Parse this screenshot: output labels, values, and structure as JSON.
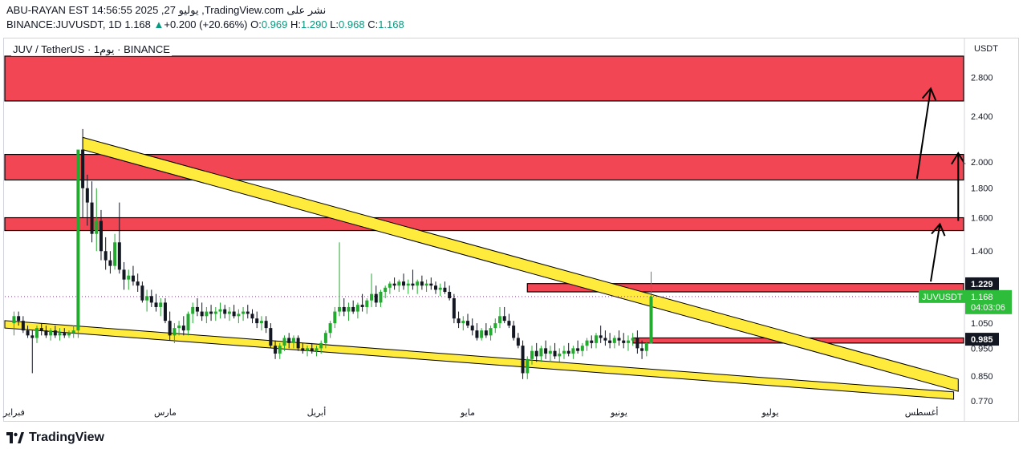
{
  "header": {
    "line1": "ABU-RAYAN EST 14:56:55 2025 ,27 يوليو ,TradingView.com نشر على",
    "symbol_text": "BINANCE:JUVUSDT, 1D 1.168",
    "change": "+0.200 (+20.66%)",
    "o_label": "O:",
    "o_value": "0.969",
    "h_label": "H:",
    "h_value": "1.290",
    "l_label": "L:",
    "l_value": "0.968",
    "c_label": "C:",
    "c_value": "1.168"
  },
  "chart_title": "JUV / TetherUS · 1يوم · BINANCE",
  "axis_unit": "USDT",
  "footer": {
    "brand": "TradingView",
    "icon": "tradingview-logo-icon"
  },
  "colors": {
    "zone_red": "#f23645",
    "trend_yellow": "#ffeb3b",
    "up": "#22ab2e",
    "down": "#131722",
    "price_label_bg": "#2ebd3a"
  },
  "chart_data": {
    "type": "candlestick",
    "symbol": "JUVUSDT",
    "interval": "1D",
    "y_scale": "log",
    "ylim": [
      0.77,
      3.05
    ],
    "y_ticks": [
      0.77,
      0.85,
      0.95,
      1.05,
      1.4,
      1.6,
      1.8,
      2.0,
      2.4,
      2.8
    ],
    "y_tick_labels": [
      "0.770",
      "0.850",
      "0.950",
      "1.050",
      "1.400",
      "1.600",
      "1.800",
      "2.000",
      "2.400",
      "2.800"
    ],
    "x_day_range": [
      -2,
      207
    ],
    "x_ticks": [
      {
        "day": 0,
        "label": "فبراير"
      },
      {
        "day": 33,
        "label": "مارس"
      },
      {
        "day": 66,
        "label": "أبريل"
      },
      {
        "day": 99,
        "label": "مايو"
      },
      {
        "day": 132,
        "label": "يونيو"
      },
      {
        "day": 165,
        "label": "يوليو"
      },
      {
        "day": 198,
        "label": "أغسطس"
      }
    ],
    "current_price": {
      "value": 1.168,
      "label": "JUVUSDT",
      "value_label": "1.168",
      "countdown": "04:03:06"
    },
    "price_labels": [
      {
        "value": 1.229,
        "label": "1.229"
      },
      {
        "value": 0.985,
        "label": "0.985"
      }
    ],
    "zones": [
      {
        "low": 2.55,
        "high": 3.05,
        "from_day": -2,
        "to_day": 216
      },
      {
        "low": 1.86,
        "high": 2.06,
        "from_day": -2,
        "to_day": 216
      },
      {
        "low": 1.52,
        "high": 1.6,
        "from_day": -2,
        "to_day": 216
      },
      {
        "low": 1.19,
        "high": 1.23,
        "from_day": 112,
        "to_day": 216
      },
      {
        "low": 0.97,
        "high": 0.99,
        "from_day": 135,
        "to_day": 216
      }
    ],
    "trend_channels": [
      {
        "from_day": 15,
        "from_price": 2.1,
        "to_day": 206,
        "to_price": 0.8,
        "offset": 0.05
      },
      {
        "from_day": -2,
        "from_price": 1.03,
        "to_day": 205,
        "to_price": 0.775,
        "offset": 0.03
      }
    ],
    "arrows": [
      {
        "from_day": 200,
        "from_price": 1.24,
        "to_day": 202,
        "to_price": 1.56
      },
      {
        "from_day": 206,
        "from_price": 1.58,
        "to_day": 206,
        "to_price": 2.07
      },
      {
        "from_day": 197,
        "from_price": 1.87,
        "to_day": 200,
        "to_price": 2.68
      }
    ],
    "candles_ohlc": [
      [
        1.05,
        1.1,
        1.0,
        1.08
      ],
      [
        1.08,
        1.1,
        1.04,
        1.06
      ],
      [
        1.06,
        1.08,
        1.01,
        1.02
      ],
      [
        1.02,
        1.04,
        0.99,
        1.0
      ],
      [
        1.0,
        1.02,
        0.86,
        0.99
      ],
      [
        0.99,
        1.04,
        0.97,
        1.03
      ],
      [
        1.03,
        1.05,
        1.0,
        1.02
      ],
      [
        1.02,
        1.04,
        0.99,
        1.0
      ],
      [
        1.0,
        1.03,
        0.98,
        1.02
      ],
      [
        1.02,
        1.04,
        0.99,
        1.0
      ],
      [
        1.0,
        1.03,
        0.98,
        1.01
      ],
      [
        1.01,
        1.03,
        0.99,
        1.0
      ],
      [
        1.0,
        1.02,
        0.99,
        1.01
      ],
      [
        1.01,
        1.04,
        0.99,
        1.02
      ],
      [
        1.02,
        1.06,
        0.99,
        2.1
      ],
      [
        2.1,
        2.28,
        1.6,
        1.8
      ],
      [
        1.8,
        1.9,
        1.55,
        1.7
      ],
      [
        1.7,
        1.85,
        1.45,
        1.5
      ],
      [
        1.5,
        1.8,
        1.4,
        1.58
      ],
      [
        1.58,
        1.65,
        1.35,
        1.4
      ],
      [
        1.4,
        1.48,
        1.3,
        1.35
      ],
      [
        1.35,
        1.4,
        1.28,
        1.32
      ],
      [
        1.32,
        1.5,
        1.3,
        1.45
      ],
      [
        1.45,
        1.7,
        1.28,
        1.3
      ],
      [
        1.3,
        1.34,
        1.2,
        1.25
      ],
      [
        1.25,
        1.3,
        1.2,
        1.27
      ],
      [
        1.27,
        1.32,
        1.22,
        1.24
      ],
      [
        1.24,
        1.28,
        1.19,
        1.22
      ],
      [
        1.22,
        1.24,
        1.14,
        1.15
      ],
      [
        1.15,
        1.2,
        1.1,
        1.17
      ],
      [
        1.17,
        1.2,
        1.12,
        1.14
      ],
      [
        1.14,
        1.18,
        1.1,
        1.12
      ],
      [
        1.12,
        1.16,
        1.08,
        1.14
      ],
      [
        1.14,
        1.16,
        1.05,
        1.06
      ],
      [
        1.06,
        1.1,
        0.98,
        1.0
      ],
      [
        1.0,
        1.05,
        0.97,
        1.03
      ],
      [
        1.03,
        1.06,
        1.0,
        1.04
      ],
      [
        1.04,
        1.08,
        1.0,
        1.02
      ],
      [
        1.02,
        1.1,
        1.0,
        1.09
      ],
      [
        1.09,
        1.14,
        1.05,
        1.12
      ],
      [
        1.12,
        1.16,
        1.08,
        1.1
      ],
      [
        1.1,
        1.14,
        1.06,
        1.08
      ],
      [
        1.08,
        1.12,
        1.05,
        1.1
      ],
      [
        1.1,
        1.13,
        1.06,
        1.09
      ],
      [
        1.09,
        1.12,
        1.06,
        1.1
      ],
      [
        1.1,
        1.14,
        1.07,
        1.11
      ],
      [
        1.11,
        1.13,
        1.07,
        1.09
      ],
      [
        1.09,
        1.12,
        1.06,
        1.1
      ],
      [
        1.1,
        1.13,
        1.07,
        1.08
      ],
      [
        1.08,
        1.11,
        1.05,
        1.09
      ],
      [
        1.09,
        1.12,
        1.06,
        1.1
      ],
      [
        1.1,
        1.13,
        1.07,
        1.09
      ],
      [
        1.09,
        1.11,
        1.05,
        1.07
      ],
      [
        1.07,
        1.1,
        1.03,
        1.05
      ],
      [
        1.05,
        1.08,
        1.02,
        1.06
      ],
      [
        1.06,
        1.08,
        1.01,
        1.03
      ],
      [
        1.03,
        1.05,
        0.95,
        0.96
      ],
      [
        0.96,
        0.98,
        0.91,
        0.93
      ],
      [
        0.93,
        0.97,
        0.91,
        0.96
      ],
      [
        0.96,
        1.0,
        0.94,
        0.99
      ],
      [
        0.99,
        1.01,
        0.95,
        0.97
      ],
      [
        0.97,
        1.0,
        0.95,
        0.99
      ],
      [
        0.99,
        1.0,
        0.94,
        0.95
      ],
      [
        0.95,
        0.97,
        0.93,
        0.94
      ],
      [
        0.94,
        0.96,
        0.92,
        0.95
      ],
      [
        0.95,
        0.97,
        0.93,
        0.94
      ],
      [
        0.94,
        0.96,
        0.92,
        0.95
      ],
      [
        0.95,
        0.98,
        0.93,
        0.97
      ],
      [
        0.97,
        1.02,
        0.95,
        1.01
      ],
      [
        1.01,
        1.06,
        0.99,
        1.05
      ],
      [
        1.05,
        1.12,
        1.03,
        1.1
      ],
      [
        1.1,
        1.45,
        1.08,
        1.12
      ],
      [
        1.12,
        1.16,
        1.08,
        1.1
      ],
      [
        1.1,
        1.14,
        1.06,
        1.12
      ],
      [
        1.12,
        1.15,
        1.09,
        1.1
      ],
      [
        1.1,
        1.14,
        1.07,
        1.13
      ],
      [
        1.13,
        1.18,
        1.1,
        1.12
      ],
      [
        1.12,
        1.16,
        1.09,
        1.15
      ],
      [
        1.15,
        1.28,
        1.12,
        1.18
      ],
      [
        1.18,
        1.22,
        1.12,
        1.14
      ],
      [
        1.14,
        1.2,
        1.12,
        1.19
      ],
      [
        1.19,
        1.22,
        1.16,
        1.21
      ],
      [
        1.21,
        1.24,
        1.18,
        1.23
      ],
      [
        1.23,
        1.26,
        1.2,
        1.22
      ],
      [
        1.22,
        1.25,
        1.19,
        1.24
      ],
      [
        1.24,
        1.28,
        1.2,
        1.22
      ],
      [
        1.22,
        1.25,
        1.18,
        1.23
      ],
      [
        1.23,
        1.3,
        1.2,
        1.22
      ],
      [
        1.22,
        1.25,
        1.18,
        1.24
      ],
      [
        1.24,
        1.27,
        1.2,
        1.22
      ],
      [
        1.22,
        1.25,
        1.19,
        1.23
      ],
      [
        1.23,
        1.26,
        1.2,
        1.22
      ],
      [
        1.22,
        1.24,
        1.18,
        1.2
      ],
      [
        1.2,
        1.23,
        1.17,
        1.21
      ],
      [
        1.21,
        1.24,
        1.18,
        1.19
      ],
      [
        1.19,
        1.22,
        1.15,
        1.16
      ],
      [
        1.16,
        1.18,
        1.05,
        1.07
      ],
      [
        1.07,
        1.1,
        1.03,
        1.05
      ],
      [
        1.05,
        1.08,
        1.02,
        1.06
      ],
      [
        1.06,
        1.09,
        1.03,
        1.04
      ],
      [
        1.04,
        1.07,
        1.0,
        1.02
      ],
      [
        1.02,
        1.05,
        0.98,
        0.99
      ],
      [
        0.99,
        1.03,
        0.98,
        1.02
      ],
      [
        1.02,
        1.05,
        0.99,
        1.0
      ],
      [
        1.0,
        1.04,
        0.98,
        1.03
      ],
      [
        1.03,
        1.07,
        1.01,
        1.05
      ],
      [
        1.05,
        1.12,
        1.03,
        1.08
      ],
      [
        1.08,
        1.12,
        1.05,
        1.06
      ],
      [
        1.06,
        1.09,
        1.03,
        1.04
      ],
      [
        1.04,
        1.06,
        0.98,
        0.99
      ],
      [
        0.99,
        1.01,
        0.95,
        0.96
      ],
      [
        0.96,
        0.98,
        0.84,
        0.86
      ],
      [
        0.86,
        0.92,
        0.84,
        0.91
      ],
      [
        0.91,
        0.96,
        0.89,
        0.94
      ],
      [
        0.94,
        0.97,
        0.9,
        0.92
      ],
      [
        0.92,
        0.96,
        0.9,
        0.95
      ],
      [
        0.95,
        0.98,
        0.91,
        0.93
      ],
      [
        0.93,
        0.96,
        0.9,
        0.94
      ],
      [
        0.94,
        0.97,
        0.91,
        0.92
      ],
      [
        0.92,
        0.95,
        0.9,
        0.93
      ],
      [
        0.93,
        0.96,
        0.91,
        0.94
      ],
      [
        0.94,
        0.97,
        0.92,
        0.93
      ],
      [
        0.93,
        0.96,
        0.91,
        0.95
      ],
      [
        0.95,
        0.98,
        0.93,
        0.94
      ],
      [
        0.94,
        0.97,
        0.92,
        0.96
      ],
      [
        0.96,
        0.99,
        0.94,
        0.98
      ],
      [
        0.98,
        1.0,
        0.95,
        0.97
      ],
      [
        0.97,
        1.01,
        0.95,
        1.0
      ],
      [
        1.0,
        1.04,
        0.97,
        0.99
      ],
      [
        0.99,
        1.02,
        0.96,
        0.98
      ],
      [
        0.98,
        1.01,
        0.95,
        0.97
      ],
      [
        0.97,
        1.0,
        0.95,
        0.99
      ],
      [
        0.99,
        1.02,
        0.96,
        0.98
      ],
      [
        0.98,
        1.01,
        0.95,
        0.97
      ],
      [
        0.97,
        1.0,
        0.94,
        0.98
      ],
      [
        0.98,
        1.01,
        0.96,
        0.99
      ],
      [
        0.99,
        1.02,
        0.93,
        0.95
      ],
      [
        0.95,
        0.98,
        0.91,
        0.94
      ],
      [
        0.94,
        0.98,
        0.92,
        0.97
      ],
      [
        0.969,
        1.29,
        0.968,
        1.168
      ]
    ]
  }
}
